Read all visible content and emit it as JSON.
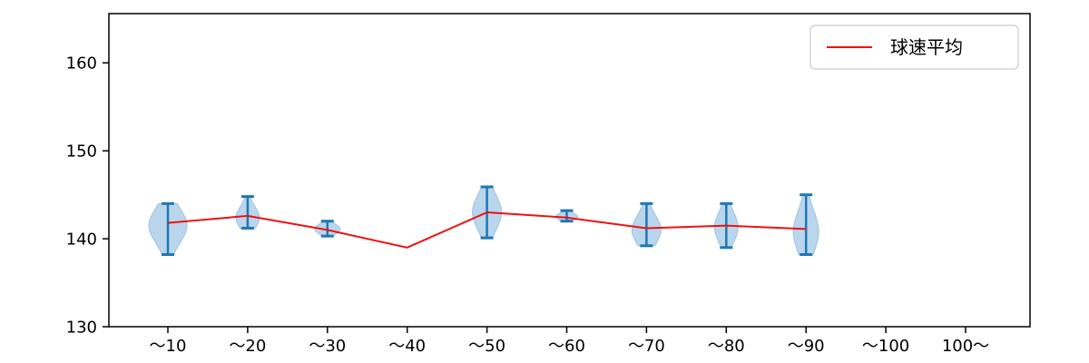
{
  "chart": {
    "legend_label": "球速平均",
    "colors": {
      "violin_fill": "#bad6ec",
      "violin_edge": "#9cc4e4",
      "bar": "#2077b4",
      "mean_line": "#ee1111",
      "axis": "#000000",
      "legend_border": "#cccccc",
      "background": "#ffffff"
    }
  },
  "chart_data": {
    "type": "violin",
    "title": "",
    "xlabel": "",
    "ylabel": "",
    "categories": [
      "～10",
      "～20",
      "～30",
      "～40",
      "～50",
      "～60",
      "～70",
      "～80",
      "～90",
      "～100",
      "100～"
    ],
    "yticks": [
      130,
      140,
      150,
      160
    ],
    "ylim": [
      130,
      165.6
    ],
    "grid": false,
    "legend": {
      "label": "球速平均",
      "position": "upper right"
    },
    "series": [
      {
        "name": "球速平均",
        "type": "line",
        "values": [
          141.8,
          142.6,
          141.0,
          139.0,
          143.0,
          142.4,
          141.2,
          141.5,
          141.1,
          null,
          null
        ]
      }
    ],
    "violins": [
      {
        "category": "～10",
        "min": 138.2,
        "max": 144.0,
        "mean": 141.8,
        "peak": 141.5,
        "halfwidth": 21
      },
      {
        "category": "～20",
        "min": 141.2,
        "max": 144.8,
        "mean": 142.6,
        "peak": 142.4,
        "halfwidth": 13
      },
      {
        "category": "～30",
        "min": 140.3,
        "max": 142.0,
        "mean": 141.0,
        "peak": 141.1,
        "halfwidth": 14
      },
      null,
      {
        "category": "～50",
        "min": 140.1,
        "max": 145.9,
        "mean": 143.0,
        "peak": 143.0,
        "halfwidth": 16
      },
      {
        "category": "～60",
        "min": 142.0,
        "max": 143.2,
        "mean": 142.4,
        "peak": 142.5,
        "halfwidth": 12
      },
      {
        "category": "～70",
        "min": 139.2,
        "max": 144.0,
        "mean": 141.2,
        "peak": 141.0,
        "halfwidth": 16
      },
      {
        "category": "～80",
        "min": 139.0,
        "max": 144.0,
        "mean": 141.5,
        "peak": 141.3,
        "halfwidth": 13
      },
      {
        "category": "～90",
        "min": 138.2,
        "max": 145.0,
        "mean": 141.1,
        "peak": 140.8,
        "halfwidth": 14
      },
      null,
      null
    ]
  }
}
